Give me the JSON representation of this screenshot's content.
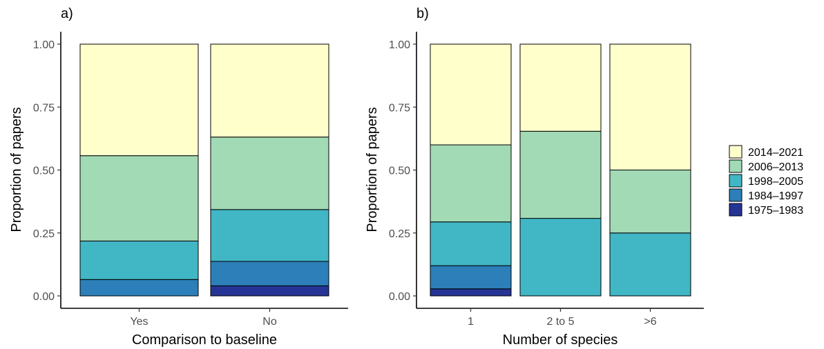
{
  "chart_data": [
    {
      "type": "bar",
      "stacked": true,
      "panel_label": "a)",
      "xlabel": "Comparison to baseline",
      "ylabel": "Proportion of papers",
      "ylim": [
        0,
        1
      ],
      "yticks": [
        "0.00",
        "0.25",
        "0.50",
        "0.75",
        "1.00"
      ],
      "categories": [
        "Yes",
        "No"
      ],
      "series": [
        {
          "name": "1975–1983",
          "values": [
            0.0,
            0.04
          ]
        },
        {
          "name": "1984–1997",
          "values": [
            0.065,
            0.097
          ]
        },
        {
          "name": "1998–2005",
          "values": [
            0.153,
            0.206
          ]
        },
        {
          "name": "2006–2013",
          "values": [
            0.339,
            0.288
          ]
        },
        {
          "name": "2014–2021",
          "values": [
            0.443,
            0.369
          ]
        }
      ],
      "grid": false
    },
    {
      "type": "bar",
      "stacked": true,
      "panel_label": "b)",
      "xlabel": "Number of species",
      "ylabel": "Proportion of papers",
      "ylim": [
        0,
        1
      ],
      "yticks": [
        "0.00",
        "0.25",
        "0.50",
        "0.75",
        "1.00"
      ],
      "categories": [
        "1",
        "2 to 5",
        ">6"
      ],
      "series": [
        {
          "name": "1975–1983",
          "values": [
            0.028,
            0.0,
            0.0
          ]
        },
        {
          "name": "1984–1997",
          "values": [
            0.092,
            0.0,
            0.0
          ]
        },
        {
          "name": "1998–2005",
          "values": [
            0.174,
            0.308,
            0.25
          ]
        },
        {
          "name": "2006–2013",
          "values": [
            0.306,
            0.346,
            0.25
          ]
        },
        {
          "name": "2014–2021",
          "values": [
            0.4,
            0.346,
            0.5
          ]
        }
      ],
      "grid": false
    }
  ],
  "legend": {
    "position": "right",
    "order": [
      "2014–2021",
      "2006–2013",
      "1998–2005",
      "1984–1997",
      "1975–1983"
    ]
  },
  "colors": {
    "1975–1983": "#253494",
    "1984–1997": "#2c7fb8",
    "1998–2005": "#41b6c4",
    "2006–2013": "#a1dab4",
    "2014–2021": "#ffffcc"
  }
}
